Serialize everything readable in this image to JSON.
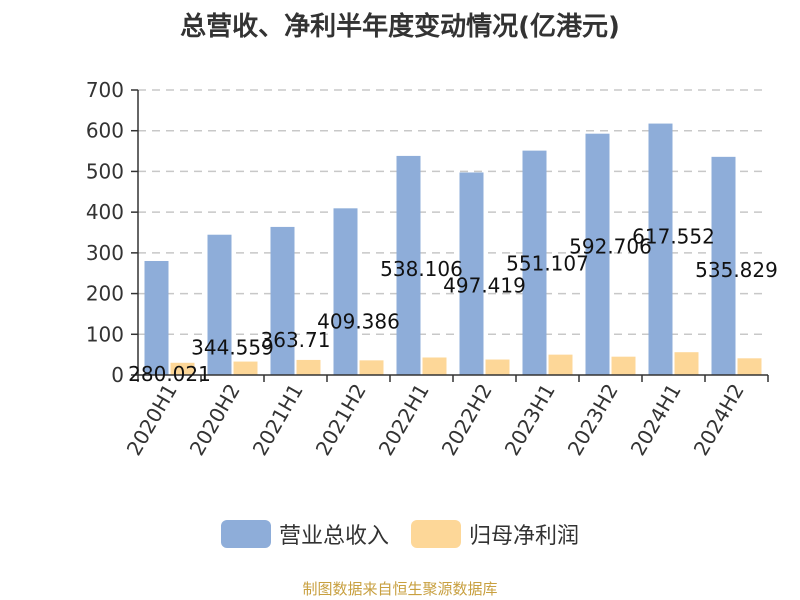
{
  "chart_data": {
    "type": "bar",
    "title": "总营收、净利半年度变动情况(亿港元)",
    "categories": [
      "2020H1",
      "2020H2",
      "2021H1",
      "2021H2",
      "2022H1",
      "2022H2",
      "2023H1",
      "2023H2",
      "2024H1",
      "2024H2"
    ],
    "series": [
      {
        "name": "营业总收入",
        "color": "#8eadd9",
        "values": [
          280.021,
          344.559,
          363.71,
          409.386,
          538.106,
          497.419,
          551.107,
          592.706,
          617.552,
          535.829
        ],
        "labels": [
          "280.021",
          "344.559",
          "363.71",
          "409.386",
          "538.106",
          "497.419",
          "551.107",
          "592.706",
          "617.552",
          "535.829"
        ]
      },
      {
        "name": "归母净利润",
        "color": "#fdd798",
        "values": [
          30,
          33,
          37,
          36,
          43,
          38,
          50,
          45,
          56,
          41
        ]
      }
    ],
    "ylim": [
      0,
      700
    ],
    "yticks": [
      0,
      100,
      200,
      300,
      400,
      500,
      600,
      700
    ],
    "grid": true,
    "legend_position": "bottom"
  },
  "source_note": "制图数据来自恒生聚源数据库"
}
